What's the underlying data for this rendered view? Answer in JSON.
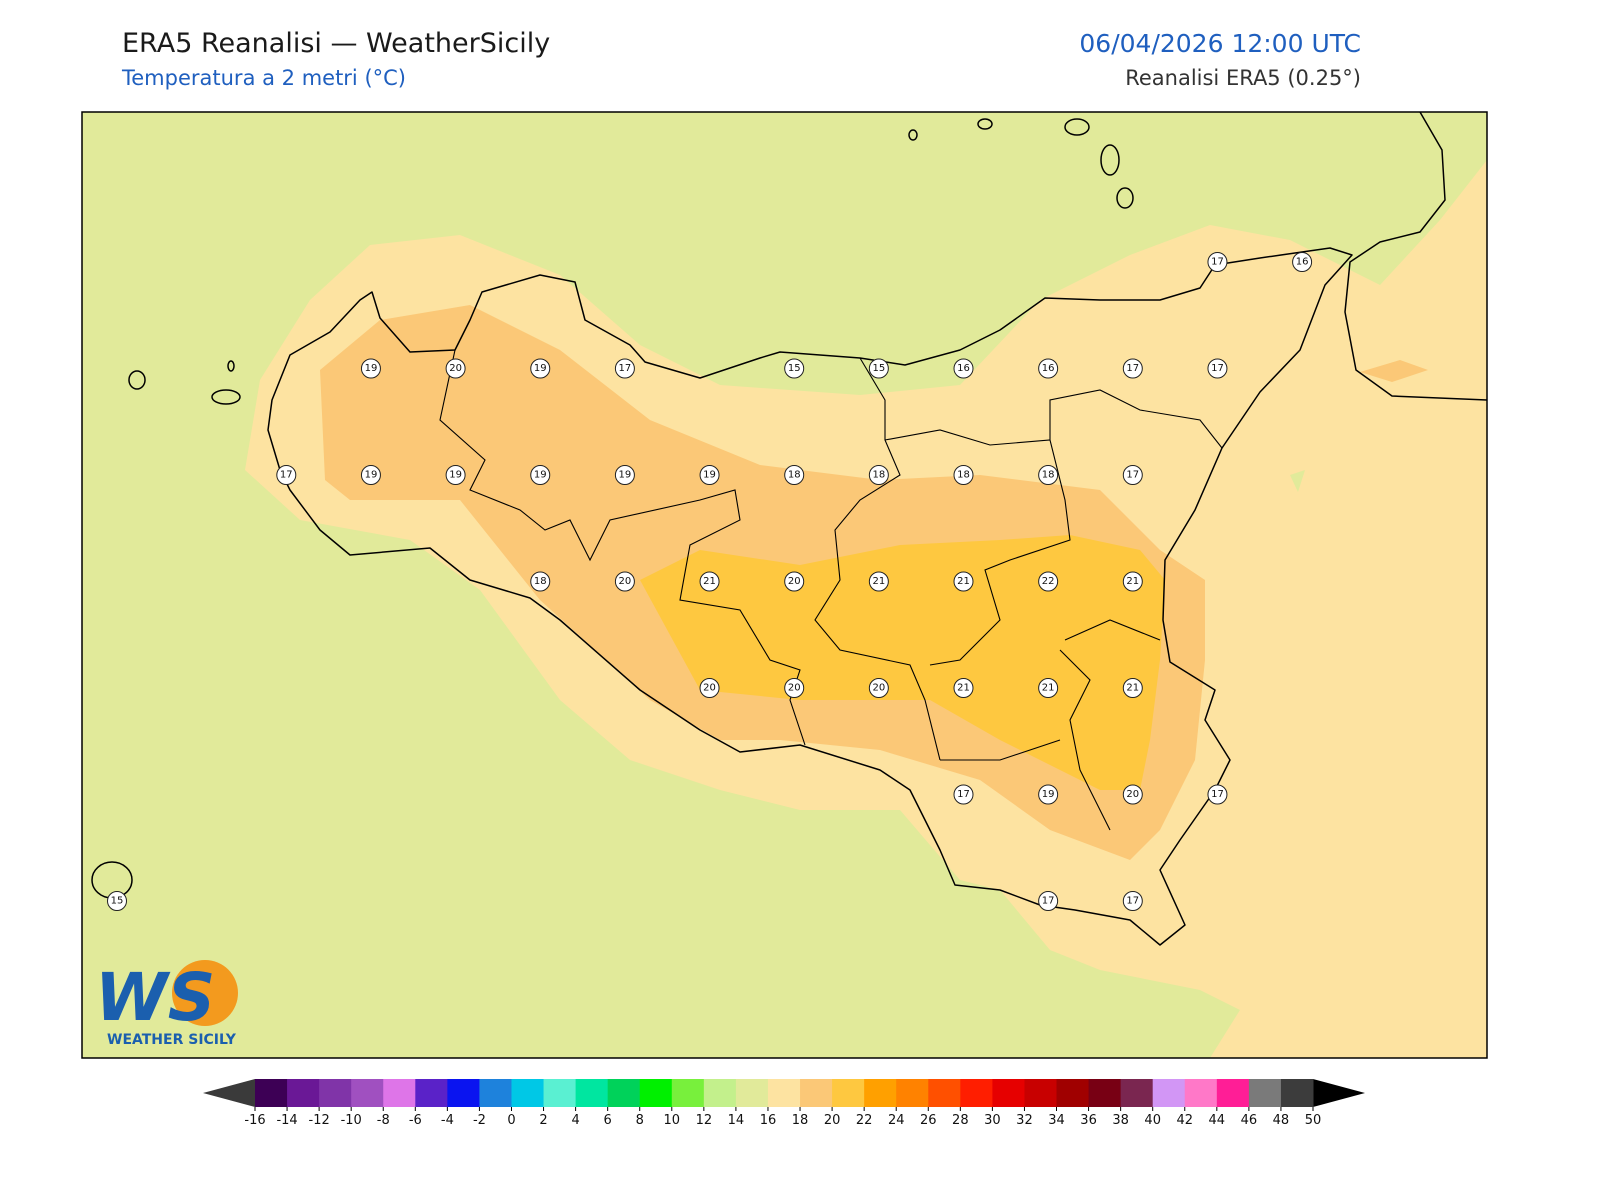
{
  "header": {
    "title": "ERA5 Reanalisi — WeatherSicily",
    "subtitle": "Temperatura a 2 metri (°C)",
    "datetime": "06/04/2026 12:00 UTC",
    "source": "Reanalisi ERA5 (0.25°)"
  },
  "station_grid": [
    [
      null,
      null,
      null,
      null,
      null,
      null,
      null,
      null,
      null,
      null,
      null,
      null,
      null,
      17,
      16
    ],
    [
      null,
      null,
      null,
      19,
      20,
      19,
      17,
      null,
      15,
      15,
      16,
      16,
      17,
      17,
      null
    ],
    [
      null,
      null,
      17,
      19,
      19,
      19,
      19,
      19,
      18,
      18,
      18,
      18,
      17,
      null,
      null
    ],
    [
      null,
      null,
      null,
      null,
      null,
      18,
      20,
      21,
      20,
      21,
      21,
      22,
      21,
      null,
      null
    ],
    [
      null,
      null,
      null,
      null,
      null,
      null,
      null,
      20,
      20,
      20,
      21,
      21,
      21,
      null,
      null
    ],
    [
      null,
      null,
      null,
      null,
      null,
      null,
      null,
      null,
      null,
      null,
      17,
      19,
      20,
      17,
      null
    ],
    [
      15,
      null,
      null,
      null,
      null,
      null,
      null,
      null,
      null,
      null,
      null,
      17,
      17,
      null,
      null
    ]
  ],
  "colorbar": {
    "ticks": [
      -16,
      -14,
      -12,
      -10,
      -8,
      -6,
      -4,
      -2,
      0,
      2,
      4,
      6,
      8,
      10,
      12,
      14,
      16,
      18,
      20,
      22,
      24,
      26,
      28,
      30,
      32,
      34,
      36,
      38,
      40,
      42,
      44,
      46,
      48,
      50
    ],
    "colors": [
      "#3d0055",
      "#6a1896",
      "#8034a8",
      "#a050c0",
      "#de75e8",
      "#5a22c8",
      "#0a14f0",
      "#1e82dc",
      "#00c8e6",
      "#5af0d2",
      "#00e6a0",
      "#00d25a",
      "#00f000",
      "#78f03c",
      "#c3f08c",
      "#e1ea9a",
      "#fde3a1",
      "#fbc877",
      "#fec840",
      "#ffa000",
      "#ff8200",
      "#ff5000",
      "#ff1e00",
      "#e60000",
      "#c80000",
      "#a00000",
      "#780014",
      "#7a2650",
      "#d296f5",
      "#ff78c8",
      "#ff1e96",
      "#7a7a7a",
      "#3c3c3c"
    ],
    "under_color": "#3a3a3a",
    "over_color": "#000000"
  },
  "logo": {
    "mark": "WS",
    "text": "WEATHER SICILY"
  }
}
